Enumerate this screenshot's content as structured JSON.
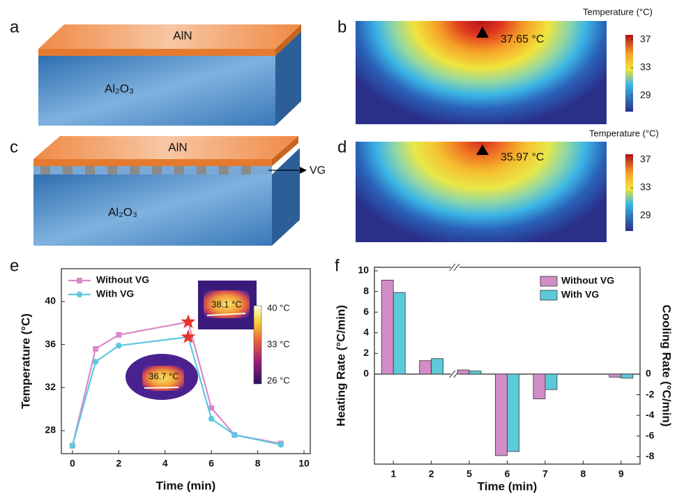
{
  "panel_labels": [
    "a",
    "b",
    "c",
    "d",
    "e",
    "f"
  ],
  "panel_a": {
    "top_layer": "AlN",
    "substrate": "Al₂O₃"
  },
  "panel_b": {
    "colorbar_title": "Temperature (°C)",
    "colorbar_ticks": [
      37,
      33,
      29
    ],
    "marker_label": "37.65 °C"
  },
  "panel_c": {
    "top_layer": "AlN",
    "substrate": "Al₂O₃",
    "interlayer": "VG"
  },
  "panel_d": {
    "colorbar_title": "Temperature (°C)",
    "colorbar_ticks": [
      37,
      33,
      29
    ],
    "marker_label": "35.97 °C"
  },
  "chart_data": [
    {
      "type": "line",
      "x_label": "Time (min)",
      "y_label": "Temperature (°C)",
      "x": [
        0,
        1,
        2,
        5,
        6,
        7,
        9
      ],
      "series": [
        {
          "name": "Without VG",
          "color": "#d98ac8",
          "values": [
            26.6,
            35.6,
            36.9,
            38.1,
            30.1,
            27.6,
            26.8
          ]
        },
        {
          "name": "With VG",
          "color": "#5cc8e0",
          "values": [
            26.6,
            34.4,
            35.9,
            36.7,
            29.1,
            27.6,
            26.7
          ]
        }
      ],
      "xlim": [
        -0.48,
        10.27
      ],
      "xticks": [
        0,
        2,
        4,
        6,
        8,
        10
      ],
      "ylim": [
        25.86,
        43.05
      ],
      "yticks": [
        28,
        32,
        36,
        40
      ],
      "legend": "upper left",
      "insets": {
        "labels": [
          "38.1 °C",
          "36.7 °C"
        ],
        "colorbar_labels": [
          "40 °C",
          "33 °C",
          "26 °C"
        ]
      }
    },
    {
      "type": "bar",
      "x_label": "Time (min)",
      "y_label": "Heating Rate (°C/min)",
      "y2_label": "Cooling Rate (°C/min)",
      "categories": [
        "1",
        "2",
        "5",
        "6",
        "7",
        "8",
        "9"
      ],
      "series": [
        {
          "name": "Without VG",
          "color": "#d28dc7",
          "values": [
            9.1,
            1.3,
            0.4,
            -7.9,
            -2.4,
            null,
            -0.3
          ]
        },
        {
          "name": "With VG",
          "color": "#5ccad8",
          "values": [
            7.9,
            1.5,
            0.3,
            -7.5,
            -1.5,
            null,
            -0.4
          ]
        }
      ],
      "ylim": [
        -8.72,
        10.34
      ],
      "yticks": [
        0,
        2,
        4,
        6,
        8,
        10
      ],
      "y2lim": [
        -8.72,
        10.34
      ],
      "y2ticks": [
        -8,
        -6,
        -4,
        -2,
        0
      ],
      "legend": "upper right"
    }
  ]
}
